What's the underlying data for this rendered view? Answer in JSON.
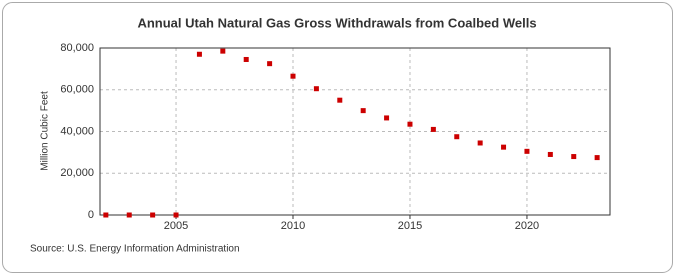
{
  "chart_data": {
    "type": "scatter",
    "title": "Annual Utah Natural Gas Gross Withdrawals from Coalbed Wells",
    "y_label": "Million Cubic Feet",
    "source": "Source: U.S. Energy Information Administration",
    "color": "#cc0000",
    "grid": true,
    "x": [
      2002,
      2003,
      2004,
      2005,
      2006,
      2007,
      2008,
      2009,
      2010,
      2011,
      2012,
      2013,
      2014,
      2015,
      2016,
      2017,
      2018,
      2019,
      2020,
      2021,
      2022,
      2023
    ],
    "values": [
      0,
      0,
      0,
      0,
      77000,
      78500,
      74500,
      72500,
      66500,
      60500,
      55000,
      50000,
      46500,
      43500,
      41000,
      37500,
      34500,
      32500,
      30500,
      29000,
      28000,
      27500
    ],
    "xlim": [
      2001.75,
      2023.55
    ],
    "xticks": [
      2005,
      2010,
      2015,
      2020
    ],
    "ylim": [
      0,
      80000
    ],
    "yticks": [
      0,
      {
        "value": 20000,
        "label": "20,000"
      },
      {
        "value": 40000,
        "label": "40,000"
      },
      {
        "value": 60000,
        "label": "60,000"
      },
      {
        "value": 80000,
        "label": "80,000"
      }
    ]
  }
}
